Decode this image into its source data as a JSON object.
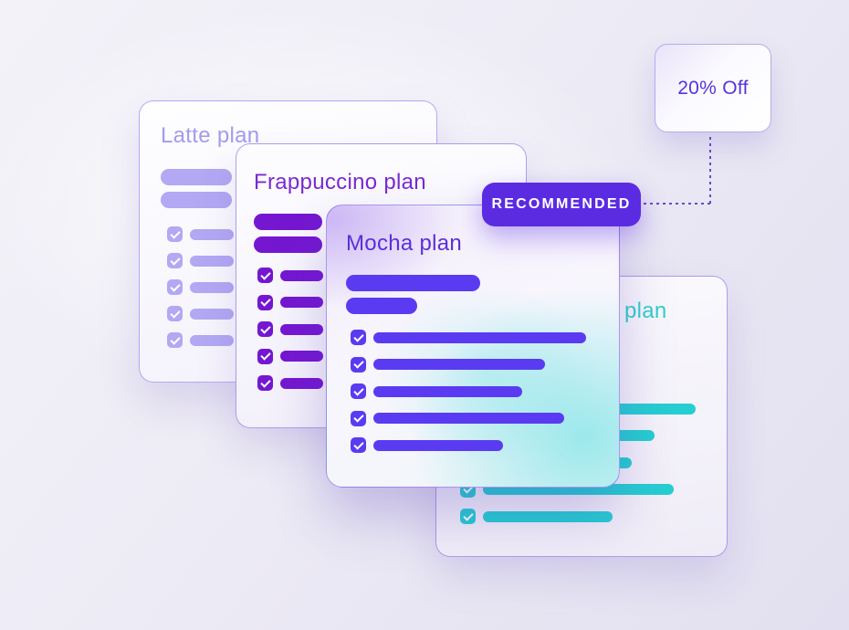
{
  "badges": {
    "recommended": "RECOMMENDED",
    "discount": "20% Off"
  },
  "colors": {
    "recommended_bg": "#5b2be2",
    "discount_text": "#5633dc",
    "connector": "#6b48cf"
  },
  "icons": {
    "checkbox_checked": "✓"
  },
  "cards": {
    "latte": {
      "title": "Latte plan",
      "title_color": "#a39bee",
      "accent": "#b2a8f3",
      "header_bars": [
        78,
        78
      ],
      "features": [
        {
          "checked": true,
          "bar": 48
        },
        {
          "checked": true,
          "bar": 48
        },
        {
          "checked": true,
          "bar": 48
        },
        {
          "checked": true,
          "bar": 48
        },
        {
          "checked": true,
          "bar": 48
        }
      ]
    },
    "frappuccino": {
      "title": "Frappuccino plan",
      "title_color": "#7a2ad2",
      "accent": "#7517d1",
      "header_bars": [
        75,
        75
      ],
      "features": [
        {
          "checked": true,
          "bar": 47
        },
        {
          "checked": true,
          "bar": 47
        },
        {
          "checked": true,
          "bar": 47
        },
        {
          "checked": true,
          "bar": 47
        },
        {
          "checked": true,
          "bar": 47
        }
      ]
    },
    "mocha": {
      "title": "Mocha plan",
      "title_color": "#5b2ed8",
      "accent": "#5a3bf2",
      "header_bars": [
        147,
        78
      ],
      "features": [
        {
          "checked": true,
          "bar": 233
        },
        {
          "checked": true,
          "bar": 188
        },
        {
          "checked": true,
          "bar": 163
        },
        {
          "checked": true,
          "bar": 209
        },
        {
          "checked": true,
          "bar": 142
        }
      ]
    },
    "teal": {
      "title_visible": "plan",
      "title_color": "#2fd0cb",
      "accent": "#25ced1",
      "header_bars": [
        147,
        78
      ],
      "features": [
        {
          "checked": true,
          "bar": 233
        },
        {
          "checked": true,
          "bar": 188
        },
        {
          "checked": true,
          "bar": 163
        },
        {
          "checked": true,
          "bar": 209
        },
        {
          "checked": true,
          "bar": 142
        }
      ]
    }
  }
}
